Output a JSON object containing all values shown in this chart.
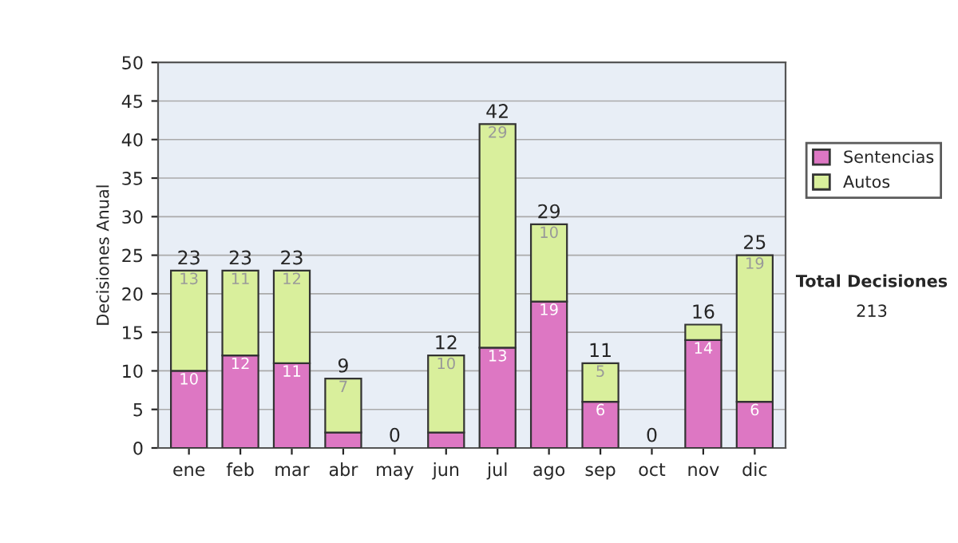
{
  "chart_data": {
    "type": "bar",
    "stacked": true,
    "ylabel": "Decisiones Anual",
    "categories": [
      "ene",
      "feb",
      "mar",
      "abr",
      "may",
      "jun",
      "jul",
      "ago",
      "sep",
      "oct",
      "nov",
      "dic"
    ],
    "series": [
      {
        "name": "Sentencias",
        "color": "#dd77c3",
        "values": [
          10,
          12,
          11,
          2,
          0,
          2,
          13,
          19,
          6,
          0,
          14,
          6
        ],
        "value_labels": [
          "10",
          "12",
          "11",
          null,
          null,
          null,
          "13",
          "19",
          "6",
          null,
          "14",
          "6"
        ]
      },
      {
        "name": "Autos",
        "color": "#d9ef9c",
        "values": [
          13,
          11,
          12,
          7,
          0,
          10,
          29,
          10,
          5,
          0,
          2,
          19
        ],
        "value_labels": [
          "13",
          "11",
          "12",
          "7",
          null,
          "10",
          "29",
          "10",
          "5",
          null,
          null,
          "19"
        ]
      }
    ],
    "totals": [
      "23",
      "23",
      "23",
      "9",
      "0",
      "12",
      "42",
      "29",
      "11",
      "0",
      "16",
      "25"
    ],
    "ylim": [
      0,
      50
    ],
    "yticks": [
      0,
      5,
      10,
      15,
      20,
      25,
      30,
      35,
      40,
      45,
      50
    ],
    "grid": "y",
    "legend": "right",
    "annotations": [
      "Total Decisiones",
      "213"
    ]
  }
}
